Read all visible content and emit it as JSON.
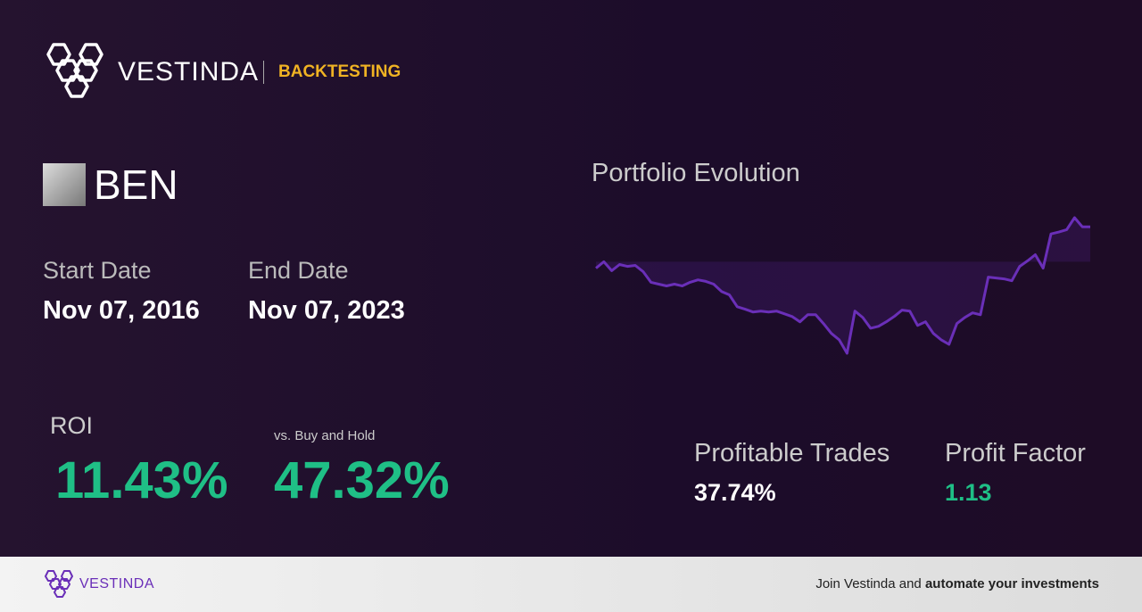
{
  "header": {
    "brand": "VESTINDA",
    "section": "BACKTESTING"
  },
  "ticker": "BEN",
  "start_date": {
    "label": "Start Date",
    "value": "Nov 07, 2016"
  },
  "end_date": {
    "label": "End Date",
    "value": "Nov 07, 2023"
  },
  "roi": {
    "label": "ROI",
    "value": "11.43%"
  },
  "vs_buy_hold": {
    "label": "vs. Buy and Hold",
    "value": "47.32%"
  },
  "profitable_trades": {
    "label": "Profitable Trades",
    "value": "37.74%"
  },
  "profit_factor": {
    "label": "Profit Factor",
    "value": "1.13"
  },
  "chart_data": {
    "type": "line",
    "title": "Portfolio Evolution",
    "color": "#6a2fb8",
    "values": [
      -2.1,
      0,
      -2.9,
      -0.9,
      -1.5,
      -1.2,
      -3.2,
      -6.7,
      -7.3,
      -7.9,
      -7.3,
      -7.9,
      -6.7,
      -5.9,
      -6.4,
      -7.3,
      -9.7,
      -10.8,
      -14.7,
      -15.5,
      -16.4,
      -16.1,
      -16.4,
      -16.1,
      -17,
      -17.9,
      -19.6,
      -17.3,
      -17.3,
      -20.2,
      -23.4,
      -25.5,
      -29.9,
      -16.1,
      -18.2,
      -21.7,
      -21.1,
      -19.6,
      -17.9,
      -15.8,
      -16.1,
      -20.8,
      -19.6,
      -23.4,
      -25.5,
      -27,
      -20.2,
      -18.2,
      -16.7,
      -17.3,
      -5,
      -5.3,
      -5.6,
      -6.2,
      -1.5,
      0.3,
      2.3,
      -2.1,
      9.1,
      9.7,
      10.5,
      14.4,
      11.4,
      11.43
    ]
  },
  "footer": {
    "brand": "VESTINDA",
    "text": "Join Vestinda and",
    "bold": "automate your investments"
  }
}
